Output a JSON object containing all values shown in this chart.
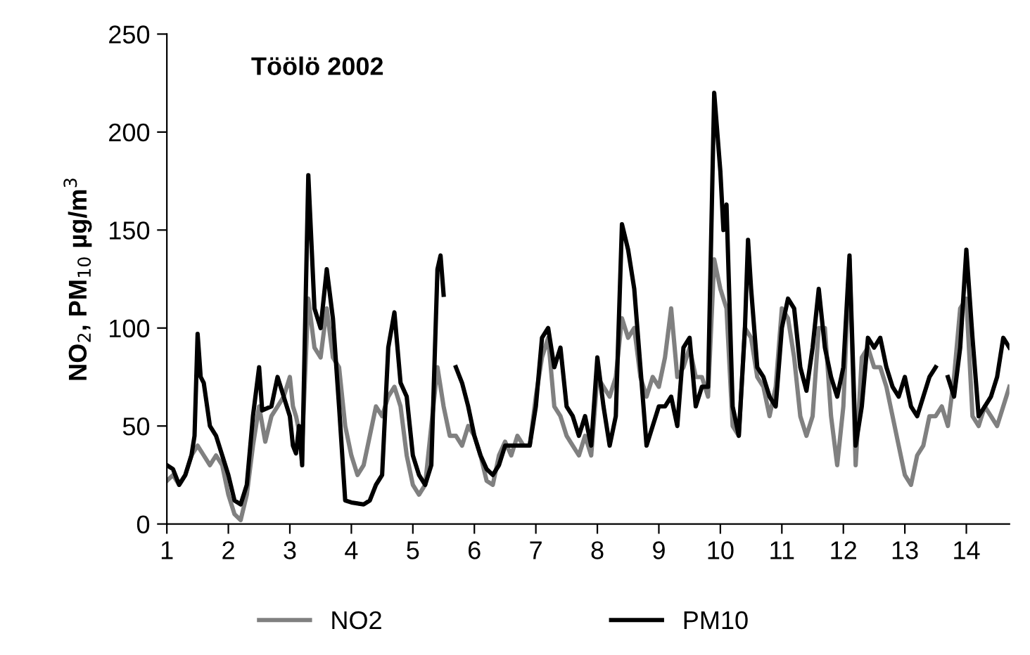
{
  "chart_data": {
    "type": "line",
    "title": "Töölö 2002",
    "ylabel": "NO$_{2}$, PM$_{10}$ µg/m$^{3}$",
    "xlim": [
      1,
      14.7
    ],
    "xticks": [
      1,
      2,
      3,
      4,
      5,
      6,
      7,
      8,
      9,
      10,
      11,
      12,
      13,
      14
    ],
    "ylim": [
      0,
      250
    ],
    "yticks": [
      0,
      50,
      100,
      150,
      200,
      250
    ],
    "grid": false,
    "legend": "bottom",
    "marker": "none",
    "line_style": "solid",
    "series": [
      {
        "name": "NO2",
        "color": "#808080",
        "x": [
          1.0,
          1.1,
          1.2,
          1.3,
          1.4,
          1.5,
          1.6,
          1.7,
          1.8,
          1.9,
          2.0,
          2.1,
          2.2,
          2.3,
          2.4,
          2.5,
          2.6,
          2.7,
          2.8,
          2.9,
          3.0,
          3.05,
          3.1,
          3.2,
          3.3,
          3.4,
          3.5,
          3.6,
          3.7,
          3.8,
          3.9,
          4.0,
          4.1,
          4.2,
          4.3,
          4.4,
          4.5,
          4.6,
          4.7,
          4.8,
          4.9,
          5.0,
          5.1,
          5.2,
          5.3,
          5.4,
          5.5,
          5.6,
          5.7,
          5.8,
          5.9,
          6.0,
          6.1,
          6.2,
          6.3,
          6.4,
          6.5,
          6.6,
          6.7,
          6.8,
          6.9,
          7.0,
          7.1,
          7.2,
          7.3,
          7.4,
          7.5,
          7.6,
          7.7,
          7.8,
          7.9,
          8.0,
          8.1,
          8.2,
          8.3,
          8.4,
          8.5,
          8.6,
          8.7,
          8.8,
          8.9,
          9.0,
          9.1,
          9.2,
          9.3,
          9.4,
          9.5,
          9.6,
          9.7,
          9.8,
          9.9,
          10.0,
          10.1,
          10.2,
          10.3,
          10.4,
          10.5,
          10.6,
          10.7,
          10.8,
          10.9,
          11.0,
          11.1,
          11.2,
          11.3,
          11.4,
          11.5,
          11.6,
          11.7,
          11.8,
          11.9,
          12.0,
          12.1,
          12.2,
          12.3,
          12.4,
          12.5,
          12.6,
          12.7,
          12.8,
          12.9,
          13.0,
          13.1,
          13.2,
          13.3,
          13.4,
          13.5,
          13.6,
          13.7,
          13.8,
          13.9,
          14.0,
          14.1,
          14.2,
          14.3,
          14.4,
          14.5,
          14.6,
          14.7
        ],
        "values": [
          22,
          25,
          20,
          25,
          35,
          40,
          35,
          30,
          35,
          30,
          15,
          5,
          2,
          15,
          40,
          60,
          42,
          55,
          60,
          65,
          75,
          60,
          55,
          40,
          115,
          90,
          85,
          110,
          85,
          80,
          50,
          35,
          25,
          30,
          45,
          60,
          55,
          65,
          70,
          60,
          35,
          20,
          15,
          20,
          50,
          80,
          60,
          45,
          45,
          40,
          50,
          45,
          35,
          22,
          20,
          35,
          42,
          35,
          45,
          40,
          40,
          65,
          85,
          95,
          60,
          55,
          45,
          40,
          35,
          45,
          35,
          75,
          70,
          65,
          75,
          105,
          95,
          100,
          75,
          65,
          75,
          70,
          85,
          110,
          75,
          80,
          90,
          75,
          75,
          65,
          135,
          120,
          110,
          50,
          45,
          100,
          95,
          75,
          70,
          55,
          70,
          110,
          105,
          85,
          55,
          45,
          55,
          100,
          100,
          55,
          30,
          60,
          135,
          30,
          85,
          90,
          80,
          80,
          70,
          55,
          40,
          25,
          20,
          35,
          40,
          55,
          55,
          60,
          50,
          75,
          110,
          115,
          55,
          50,
          60,
          55,
          50,
          60,
          70
        ]
      },
      {
        "name": "PM10",
        "color": "#000000",
        "x": [
          1.0,
          1.1,
          1.2,
          1.3,
          1.4,
          1.45,
          1.5,
          1.55,
          1.6,
          1.7,
          1.8,
          1.9,
          2.0,
          2.1,
          2.2,
          2.3,
          2.4,
          2.5,
          2.55,
          2.7,
          2.8,
          2.9,
          3.0,
          3.05,
          3.1,
          3.15,
          3.2,
          3.3,
          3.4,
          3.5,
          3.6,
          3.7,
          3.8,
          3.9,
          4.0,
          4.2,
          4.3,
          4.4,
          4.5,
          4.6,
          4.7,
          4.8,
          4.9,
          5.0,
          5.1,
          5.2,
          5.3,
          5.4,
          5.45,
          5.5,
          5.6,
          5.7,
          5.8,
          5.9,
          6.0,
          6.1,
          6.2,
          6.3,
          6.4,
          6.5,
          6.7,
          6.9,
          7.0,
          7.1,
          7.2,
          7.3,
          7.4,
          7.5,
          7.6,
          7.7,
          7.8,
          7.9,
          8.0,
          8.1,
          8.2,
          8.3,
          8.4,
          8.5,
          8.6,
          8.7,
          8.8,
          8.9,
          9.0,
          9.1,
          9.2,
          9.3,
          9.4,
          9.5,
          9.6,
          9.7,
          9.8,
          9.9,
          10.0,
          10.05,
          10.1,
          10.2,
          10.3,
          10.4,
          10.45,
          10.5,
          10.6,
          10.7,
          10.8,
          10.9,
          11.0,
          11.1,
          11.2,
          11.3,
          11.4,
          11.5,
          11.6,
          11.7,
          11.8,
          11.9,
          12.0,
          12.1,
          12.2,
          12.3,
          12.4,
          12.5,
          12.6,
          12.7,
          12.8,
          12.9,
          13.0,
          13.1,
          13.2,
          13.3,
          13.4,
          13.5,
          13.6,
          13.7,
          13.8,
          13.9,
          14.0,
          14.1,
          14.2,
          14.3,
          14.4,
          14.5,
          14.6,
          14.7
        ],
        "values": [
          30,
          28,
          20,
          25,
          35,
          45,
          97,
          75,
          72,
          50,
          45,
          35,
          25,
          12,
          10,
          20,
          55,
          80,
          58,
          60,
          75,
          65,
          55,
          40,
          36,
          50,
          30,
          178,
          110,
          100,
          130,
          105,
          60,
          12,
          11,
          10,
          12,
          20,
          25,
          90,
          108,
          72,
          65,
          35,
          25,
          20,
          30,
          130,
          137,
          117,
          null,
          80,
          72,
          60,
          45,
          35,
          28,
          25,
          30,
          40,
          40,
          40,
          60,
          95,
          100,
          80,
          90,
          60,
          55,
          45,
          55,
          40,
          85,
          60,
          40,
          55,
          153,
          140,
          120,
          80,
          40,
          50,
          60,
          60,
          65,
          50,
          90,
          95,
          60,
          70,
          70,
          220,
          180,
          150,
          163,
          60,
          45,
          100,
          145,
          120,
          80,
          75,
          65,
          60,
          100,
          115,
          110,
          80,
          68,
          90,
          120,
          90,
          75,
          65,
          80,
          137,
          40,
          60,
          95,
          90,
          95,
          80,
          70,
          65,
          75,
          60,
          55,
          65,
          75,
          80,
          null,
          75,
          65,
          90,
          140,
          95,
          55,
          60,
          65,
          75,
          95,
          90
        ]
      }
    ]
  }
}
